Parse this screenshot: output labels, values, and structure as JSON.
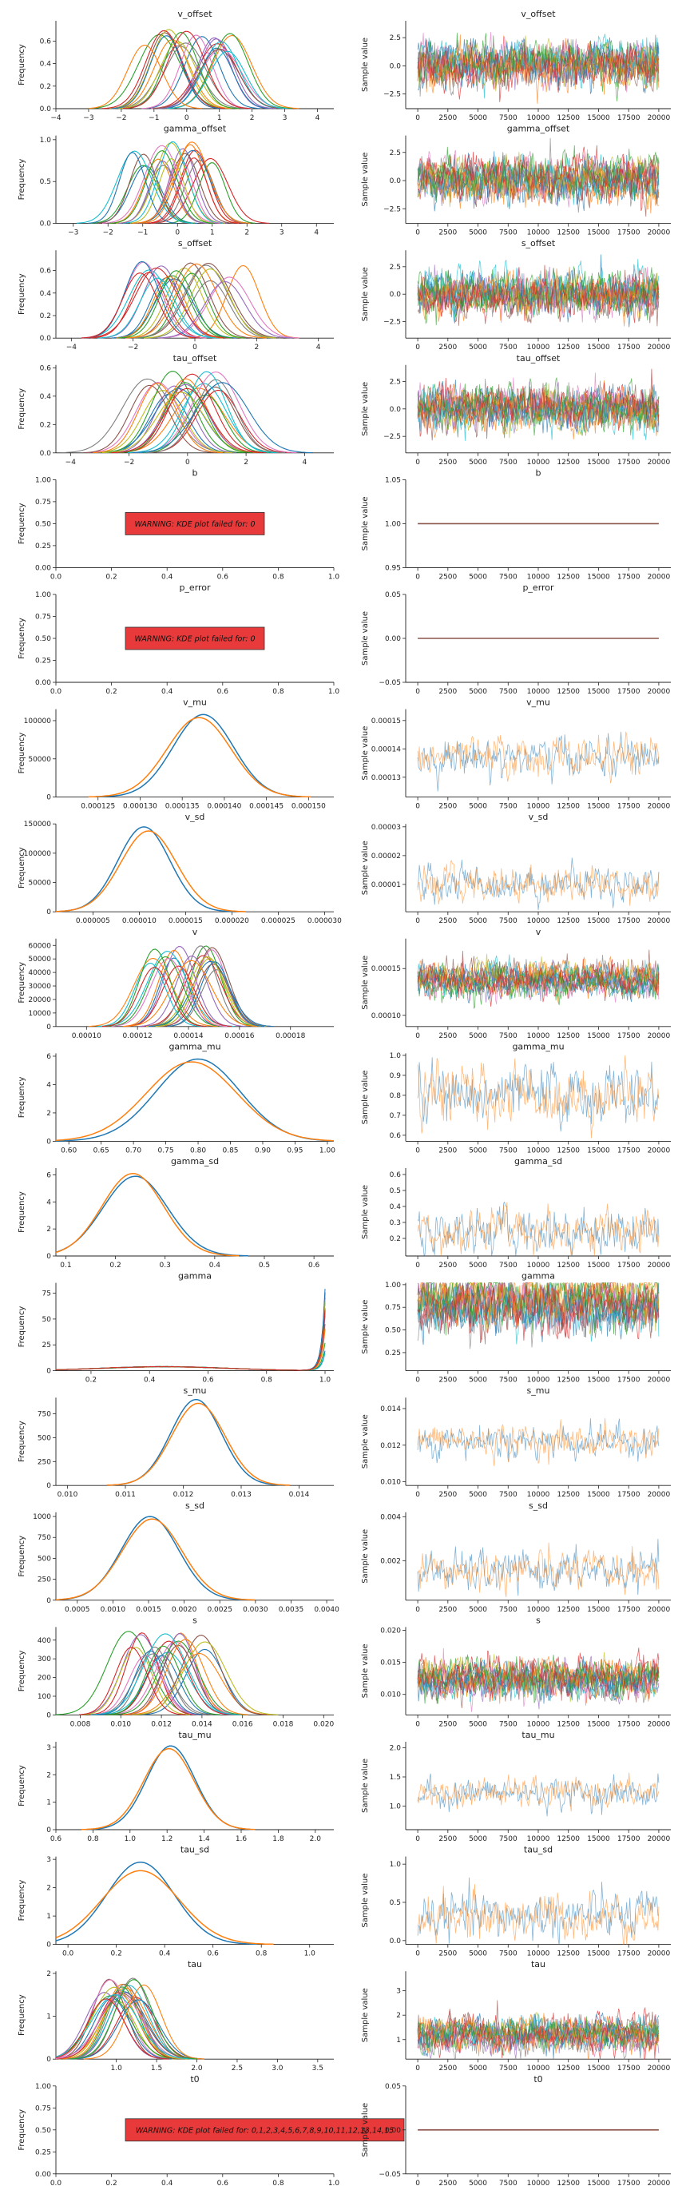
{
  "figure": {
    "density_ylabel": "Frequency",
    "trace_ylabel": "Sample value",
    "trace_xticks": [
      "0",
      "2500",
      "5000",
      "7500",
      "10000",
      "12500",
      "15000",
      "17500",
      "20000"
    ],
    "palette": [
      "#1f77b4",
      "#ff7f0e",
      "#2ca02c",
      "#d62728",
      "#9467bd",
      "#8c564b",
      "#e377c2",
      "#7f7f7f",
      "#bcbd22",
      "#17becf"
    ],
    "warning_bg": "#e83a3a",
    "pair_colors": [
      "#1f77b4",
      "#ff7f0e"
    ]
  },
  "chart_data": [
    {
      "name": "v_offset",
      "type": "line",
      "kind": "multi",
      "n": 24,
      "xticks": [
        "−4",
        "−3",
        "−2",
        "−1",
        "0",
        "1",
        "2",
        "3",
        "4"
      ],
      "xlim": [
        -4,
        4.5
      ],
      "yticks": [
        "0.0",
        "0.2",
        "0.4",
        "0.6"
      ],
      "ylim": [
        0,
        0.78
      ],
      "peak": 0.72,
      "center_range": [
        -1.3,
        1.4
      ],
      "sd": 0.55,
      "trace_yticks": [
        "−2.5",
        "0.0",
        "2.5"
      ],
      "trace_ylim": [
        -3.8,
        4.0
      ],
      "trace_mean": 0,
      "trace_sd": 1.0
    },
    {
      "name": "gamma_offset",
      "type": "line",
      "kind": "multi",
      "n": 24,
      "xticks": [
        "−3",
        "−2",
        "−1",
        "0",
        "1",
        "2",
        "3",
        "4"
      ],
      "xlim": [
        -3.5,
        4.5
      ],
      "yticks": [
        "0.0",
        "0.5",
        "1.0"
      ],
      "ylim": [
        0,
        1.05
      ],
      "peak": 0.98,
      "center_range": [
        -1.3,
        1.2
      ],
      "sd": 0.42,
      "trace_yticks": [
        "−2.5",
        "0.0",
        "2.5"
      ],
      "trace_ylim": [
        -3.8,
        4.0
      ],
      "trace_mean": 0,
      "trace_sd": 1.0
    },
    {
      "name": "s_offset",
      "type": "line",
      "kind": "multi",
      "n": 24,
      "xticks": [
        "−4",
        "−2",
        "0",
        "2",
        "4"
      ],
      "xlim": [
        -4.5,
        4.5
      ],
      "yticks": [
        "0.0",
        "0.2",
        "0.4",
        "0.6"
      ],
      "ylim": [
        0,
        0.78
      ],
      "peak": 0.7,
      "center_range": [
        -1.8,
        1.6
      ],
      "sd": 0.6,
      "trace_yticks": [
        "−2.5",
        "0.0",
        "2.5"
      ],
      "trace_ylim": [
        -4.0,
        4.0
      ],
      "trace_mean": 0,
      "trace_sd": 1.0
    },
    {
      "name": "tau_offset",
      "type": "line",
      "kind": "multi",
      "n": 24,
      "xticks": [
        "−4",
        "−2",
        "0",
        "2",
        "4"
      ],
      "xlim": [
        -4.5,
        5.0
      ],
      "yticks": [
        "0.0",
        "0.2",
        "0.4",
        "0.6"
      ],
      "ylim": [
        0,
        0.62
      ],
      "peak": 0.58,
      "center_range": [
        -1.4,
        1.2
      ],
      "sd": 0.75,
      "trace_yticks": [
        "−2.5",
        "0.0",
        "2.5"
      ],
      "trace_ylim": [
        -4.0,
        4.0
      ],
      "trace_mean": 0,
      "trace_sd": 1.0
    },
    {
      "name": "b",
      "type": "line",
      "kind": "warning",
      "warning": "WARNING: KDE plot failed for: 0",
      "xticks": [
        "0.0",
        "0.2",
        "0.4",
        "0.6",
        "0.8",
        "1.0"
      ],
      "yticks": [
        "0.00",
        "0.25",
        "0.50",
        "0.75",
        "1.00"
      ],
      "trace_yticks": [
        "0.95",
        "1.00",
        "1.05"
      ],
      "trace_ylim": [
        0.95,
        1.05
      ],
      "trace_const": 1.0
    },
    {
      "name": "p_error",
      "type": "line",
      "kind": "warning",
      "warning": "WARNING: KDE plot failed for: 0",
      "xticks": [
        "0.0",
        "0.2",
        "0.4",
        "0.6",
        "0.8",
        "1.0"
      ],
      "yticks": [
        "0.00",
        "0.25",
        "0.50",
        "0.75",
        "1.00"
      ],
      "trace_yticks": [
        "−0.05",
        "0.00",
        "0.05"
      ],
      "trace_ylim": [
        -0.05,
        0.05
      ],
      "trace_const": 0.0
    },
    {
      "name": "v_mu",
      "type": "line",
      "kind": "pair",
      "xticks": [
        "0.000125",
        "0.000130",
        "0.000135",
        "0.000140",
        "0.000145",
        "0.000150"
      ],
      "xlim": [
        0.00012,
        0.000153
      ],
      "yticks": [
        "0",
        "50000",
        "100000"
      ],
      "ylim": [
        0,
        115000
      ],
      "curves": [
        {
          "mean": 0.0001375,
          "sd": 3.6e-06,
          "peak": 108000
        },
        {
          "mean": 0.000137,
          "sd": 3.8e-06,
          "peak": 104000
        }
      ],
      "trace_yticks": [
        "0.00013",
        "0.00014",
        "0.00015"
      ],
      "trace_ylim": [
        0.000123,
        0.000154
      ],
      "trace_mean": 0.000137,
      "trace_sd": 3.8e-06
    },
    {
      "name": "v_sd",
      "type": "line",
      "kind": "pair",
      "xticks": [
        "0.000005",
        "0.000010",
        "0.000015",
        "0.000020",
        "0.000025",
        "0.000030"
      ],
      "xlim": [
        1e-06,
        3.1e-05
      ],
      "yticks": [
        "0",
        "50000",
        "100000",
        "150000"
      ],
      "ylim": [
        0,
        150000
      ],
      "curves": [
        {
          "mean": 1.05e-05,
          "sd": 2.8e-06,
          "peak": 145000
        },
        {
          "mean": 1.1e-05,
          "sd": 3e-06,
          "peak": 138000
        }
      ],
      "trace_yticks": [
        "0.00001",
        "0.00002",
        "0.00003"
      ],
      "trace_ylim": [
        5e-07,
        3.1e-05
      ],
      "trace_mean": 1.05e-05,
      "trace_sd": 3.5e-06
    },
    {
      "name": "v",
      "type": "line",
      "kind": "multi",
      "n": 24,
      "xticks": [
        "0.00010",
        "0.00012",
        "0.00014",
        "0.00016",
        "0.00018"
      ],
      "xlim": [
        8.8e-05,
        0.000197
      ],
      "yticks": [
        "0",
        "10000",
        "20000",
        "30000",
        "40000",
        "50000",
        "60000"
      ],
      "ylim": [
        0,
        65000
      ],
      "peak": 60000,
      "center_range": [
        0.000122,
        0.000152
      ],
      "sd": 6.5e-06,
      "trace_yticks": [
        "0.00010",
        "0.00015"
      ],
      "trace_ylim": [
        8.8e-05,
        0.000182
      ],
      "trace_mean": 0.000137,
      "trace_sd": 9e-06
    },
    {
      "name": "gamma_mu",
      "type": "line",
      "kind": "pair",
      "xticks": [
        "0.60",
        "0.65",
        "0.70",
        "0.75",
        "0.80",
        "0.85",
        "0.90",
        "0.95",
        "1.00"
      ],
      "xlim": [
        0.58,
        1.01
      ],
      "yticks": [
        "0",
        "2",
        "4",
        "6"
      ],
      "ylim": [
        0,
        6.2
      ],
      "curves": [
        {
          "mean": 0.8,
          "sd": 0.065,
          "peak": 5.8
        },
        {
          "mean": 0.79,
          "sd": 0.07,
          "peak": 5.6
        }
      ],
      "trace_yticks": [
        "0.6",
        "0.7",
        "0.8",
        "0.9",
        "1.0"
      ],
      "trace_ylim": [
        0.57,
        1.01
      ],
      "trace_mean": 0.8,
      "trace_sd": 0.08
    },
    {
      "name": "gamma_sd",
      "type": "line",
      "kind": "pair",
      "xticks": [
        "0.1",
        "0.2",
        "0.3",
        "0.4",
        "0.5",
        "0.6"
      ],
      "xlim": [
        0.08,
        0.64
      ],
      "yticks": [
        "0",
        "2",
        "4",
        "6"
      ],
      "ylim": [
        0,
        6.5
      ],
      "curves": [
        {
          "mean": 0.24,
          "sd": 0.065,
          "peak": 5.9
        },
        {
          "mean": 0.235,
          "sd": 0.062,
          "peak": 6.1
        }
      ],
      "trace_yticks": [
        "0.2",
        "0.3",
        "0.4",
        "0.5",
        "0.6"
      ],
      "trace_ylim": [
        0.09,
        0.64
      ],
      "trace_mean": 0.25,
      "trace_sd": 0.08
    },
    {
      "name": "gamma",
      "type": "line",
      "kind": "multi_spike",
      "n": 24,
      "xticks": [
        "0.2",
        "0.4",
        "0.6",
        "0.8",
        "1.0"
      ],
      "xlim": [
        0.08,
        1.03
      ],
      "yticks": [
        "0",
        "25",
        "50",
        "75"
      ],
      "ylim": [
        0,
        85
      ],
      "peak": 80,
      "trace_yticks": [
        "0.25",
        "0.50",
        "0.75",
        "1.00"
      ],
      "trace_ylim": [
        0.05,
        1.02
      ],
      "trace_mean": 0.8,
      "trace_sd": 0.15
    },
    {
      "name": "s_mu",
      "type": "line",
      "kind": "pair",
      "xticks": [
        "0.010",
        "0.011",
        "0.012",
        "0.013",
        "0.014"
      ],
      "xlim": [
        0.0098,
        0.0146
      ],
      "yticks": [
        "0",
        "250",
        "500",
        "750"
      ],
      "ylim": [
        0,
        920
      ],
      "curves": [
        {
          "mean": 0.01222,
          "sd": 0.00044,
          "peak": 900
        },
        {
          "mean": 0.01226,
          "sd": 0.00046,
          "peak": 860
        }
      ],
      "trace_yticks": [
        "0.010",
        "0.012",
        "0.014"
      ],
      "trace_ylim": [
        0.0098,
        0.0146
      ],
      "trace_mean": 0.01225,
      "trace_sd": 0.0005
    },
    {
      "name": "s_sd",
      "type": "line",
      "kind": "pair",
      "xticks": [
        "0.0005",
        "0.0010",
        "0.0015",
        "0.0020",
        "0.0025",
        "0.0030",
        "0.0035",
        "0.0040"
      ],
      "xlim": [
        0.0002,
        0.0041
      ],
      "yticks": [
        "0",
        "250",
        "500",
        "750",
        "1000"
      ],
      "ylim": [
        0,
        1050
      ],
      "curves": [
        {
          "mean": 0.00152,
          "sd": 0.0004,
          "peak": 1000
        },
        {
          "mean": 0.00155,
          "sd": 0.00042,
          "peak": 970
        }
      ],
      "trace_yticks": [
        "0.002",
        "0.004"
      ],
      "trace_ylim": [
        0.0002,
        0.0042
      ],
      "trace_mean": 0.0015,
      "trace_sd": 0.0005
    },
    {
      "name": "s",
      "type": "line",
      "kind": "multi",
      "n": 24,
      "xticks": [
        "0.008",
        "0.010",
        "0.012",
        "0.014",
        "0.016",
        "0.018",
        "0.020"
      ],
      "xlim": [
        0.0068,
        0.0205
      ],
      "yticks": [
        "0",
        "100",
        "200",
        "300",
        "400"
      ],
      "ylim": [
        0,
        470
      ],
      "peak": 450,
      "center_range": [
        0.0103,
        0.0142
      ],
      "sd": 0.0009,
      "trace_yticks": [
        "0.010",
        "0.015",
        "0.020"
      ],
      "trace_ylim": [
        0.0068,
        0.0205
      ],
      "trace_mean": 0.0122,
      "trace_sd": 0.0015
    },
    {
      "name": "tau_mu",
      "type": "line",
      "kind": "pair",
      "xticks": [
        "0.6",
        "0.8",
        "1.0",
        "1.2",
        "1.4",
        "1.6",
        "1.8",
        "2.0"
      ],
      "xlim": [
        0.6,
        2.1
      ],
      "yticks": [
        "0",
        "1",
        "2",
        "3"
      ],
      "ylim": [
        0,
        3.2
      ],
      "curves": [
        {
          "mean": 1.22,
          "sd": 0.13,
          "peak": 3.05
        },
        {
          "mean": 1.21,
          "sd": 0.135,
          "peak": 2.95
        }
      ],
      "trace_yticks": [
        "1.0",
        "1.5",
        "2.0"
      ],
      "trace_ylim": [
        0.6,
        2.1
      ],
      "trace_mean": 1.22,
      "trace_sd": 0.14
    },
    {
      "name": "tau_sd",
      "type": "line",
      "kind": "pair",
      "xticks": [
        "0.0",
        "0.2",
        "0.4",
        "0.6",
        "0.8",
        "1.0"
      ],
      "xlim": [
        -0.05,
        1.1
      ],
      "yticks": [
        "0",
        "1",
        "2",
        "3"
      ],
      "ylim": [
        0,
        3.1
      ],
      "curves": [
        {
          "mean": 0.3,
          "sd": 0.14,
          "peak": 2.9
        },
        {
          "mean": 0.3,
          "sd": 0.16,
          "peak": 2.6
        }
      ],
      "trace_yticks": [
        "0.0",
        "0.5",
        "1.0"
      ],
      "trace_ylim": [
        -0.05,
        1.1
      ],
      "trace_mean": 0.32,
      "trace_sd": 0.17
    },
    {
      "name": "tau",
      "type": "line",
      "kind": "multi",
      "n": 24,
      "xticks": [
        "1.0",
        "1.5",
        "2.0",
        "2.5",
        "3.0",
        "3.5"
      ],
      "xlim": [
        0.25,
        3.7
      ],
      "yticks": [
        "0",
        "1",
        "2"
      ],
      "ylim": [
        0,
        2.05
      ],
      "peak": 1.9,
      "center_range": [
        0.8,
        1.35
      ],
      "sd": 0.24,
      "trace_yticks": [
        "1",
        "2",
        "3"
      ],
      "trace_ylim": [
        0.2,
        3.8
      ],
      "trace_mean": 1.25,
      "trace_sd": 0.35
    },
    {
      "name": "t0",
      "type": "line",
      "kind": "warning",
      "warning": "WARNING: KDE plot failed for: 0,1,2,3,4,5,6,7,8,9,10,11,12,13,14,15",
      "xticks": [
        "0.0",
        "0.2",
        "0.4",
        "0.6",
        "0.8",
        "1.0"
      ],
      "yticks": [
        "0.00",
        "0.25",
        "0.50",
        "0.75",
        "1.00"
      ],
      "trace_yticks": [
        "−0.05",
        "0.00",
        "0.05"
      ],
      "trace_ylim": [
        -0.05,
        0.05
      ],
      "trace_const": 0.0
    }
  ]
}
